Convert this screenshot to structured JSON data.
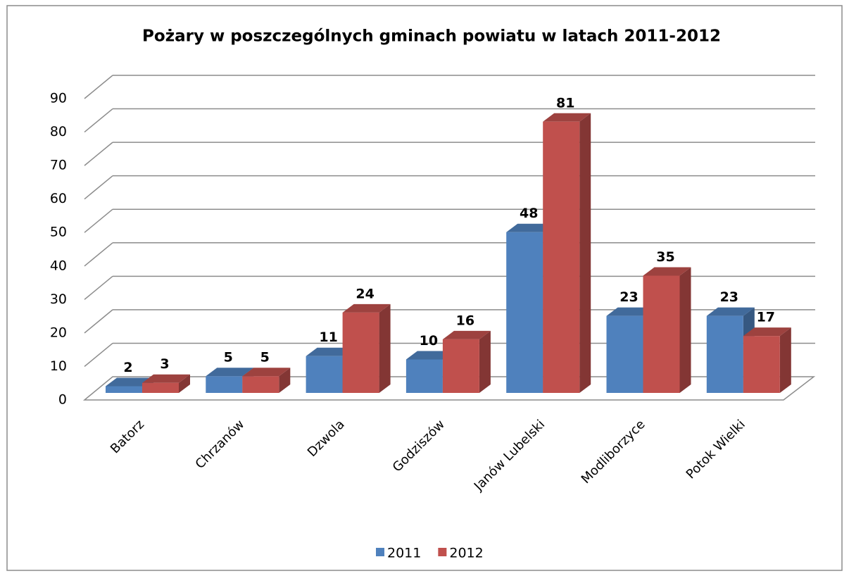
{
  "chart_data": {
    "type": "bar3d",
    "title": "Pożary w poszczególnych gminach powiatu w latach 2011-2012",
    "categories": [
      "Batorz",
      "Chrzanów",
      "Dzwola",
      "Godziszów",
      "Janów Lubelski",
      "Modliborzyce",
      "Potok Wielki"
    ],
    "series": [
      {
        "name": "2011",
        "color": "#4f81bd",
        "values": [
          2,
          5,
          11,
          10,
          48,
          23,
          23
        ]
      },
      {
        "name": "2012",
        "color": "#c0504d",
        "values": [
          3,
          5,
          24,
          16,
          81,
          35,
          17
        ]
      }
    ],
    "ylim": [
      0,
      90
    ],
    "yticks": [
      0,
      10,
      20,
      30,
      40,
      50,
      60,
      70,
      80,
      90
    ],
    "grid": true,
    "legend": "bottom"
  }
}
